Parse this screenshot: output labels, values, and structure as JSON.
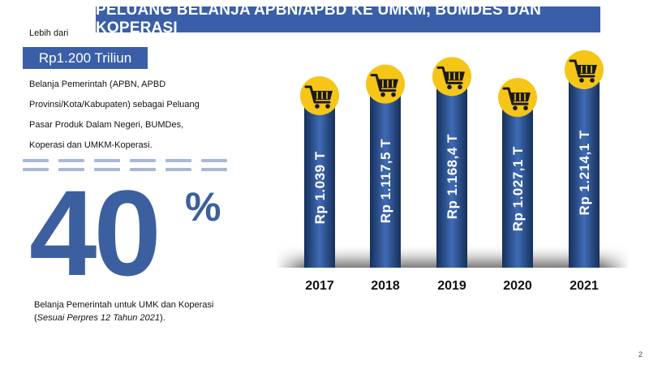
{
  "header": {
    "title": "PELUANG BELANJA APBN/APBD KE UMKM, BUMDES DAN KOPERASI"
  },
  "summary": {
    "prefix": "Lebih dari",
    "amount": "Rp1.200 Triliun",
    "desc_lines": [
      "Belanja Pemerintah (APBN, APBD",
      "Provinsi/Kota/Kabupaten) sebagai Peluang",
      "Pasar Produk Dalam Negeri, BUMDes,",
      "Koperasi dan UMKM-Koperasi."
    ]
  },
  "highlight": {
    "value": "40",
    "unit": "%",
    "caption_line1": "Belanja Pemerintah untuk UMK dan Koperasi",
    "caption_open": "(",
    "caption_italic": "Sesuai Perpres 12 Tahun 2021",
    "caption_close": ")."
  },
  "page_number": "2",
  "colors": {
    "accent": "#3a5fa8",
    "bar_dark": "#16305a",
    "bar_light": "#3f6bb5",
    "icon_circle": "#f5c518",
    "icon_dark": "#1a1a1a"
  },
  "icons": {
    "bar_top": "shopping-cart-icon"
  },
  "chart_data": {
    "type": "bar",
    "orientation": "vertical",
    "categories": [
      "2017",
      "2018",
      "2019",
      "2020",
      "2021"
    ],
    "values": [
      1039,
      1117.5,
      1168.4,
      1027.1,
      1214.1
    ],
    "unit": "T",
    "data_labels": [
      "Rp 1.039 T",
      "Rp 1.117,5 T",
      "Rp 1.168,4 T",
      "Rp 1.027,1 T",
      "Rp 1.214,1 T"
    ],
    "title": "",
    "xlabel": "",
    "ylabel": "",
    "grid": false,
    "legend": "none"
  }
}
